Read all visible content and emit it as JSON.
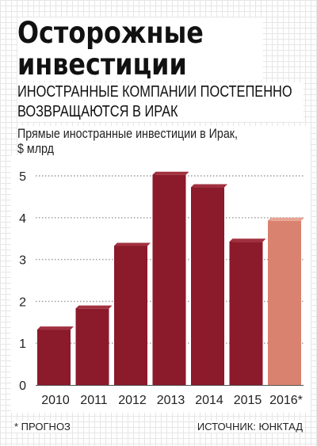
{
  "headline": {
    "line1": "Осторожные",
    "line2": "инвестиции"
  },
  "dek": {
    "line1": "ИНОСТРАННЫЕ КОМПАНИИ ПОСТЕПЕННО",
    "line2": "ВОЗВРАЩАЮТСЯ В ИРАК"
  },
  "footnote": "* ПРОГНОЗ",
  "source": "ИСТОЧНИК: ЮНКТАД",
  "colors": {
    "bar": "#8b1a2b",
    "bar_forecast": "#d9826f"
  },
  "chart_data": {
    "type": "bar",
    "title": "Прямые иностранные инвестиции в Ирак,",
    "subtitle": "$ млрд",
    "categories": [
      "2010",
      "2011",
      "2012",
      "2013",
      "2014",
      "2015",
      "2016*"
    ],
    "values": [
      1.4,
      1.9,
      3.4,
      5.1,
      4.8,
      3.5,
      4.0
    ],
    "forecast": [
      false,
      false,
      false,
      false,
      false,
      false,
      true
    ],
    "yticks": [
      0,
      1,
      2,
      3,
      4,
      5
    ],
    "ylim": [
      0,
      5.3
    ],
    "grid": true
  }
}
